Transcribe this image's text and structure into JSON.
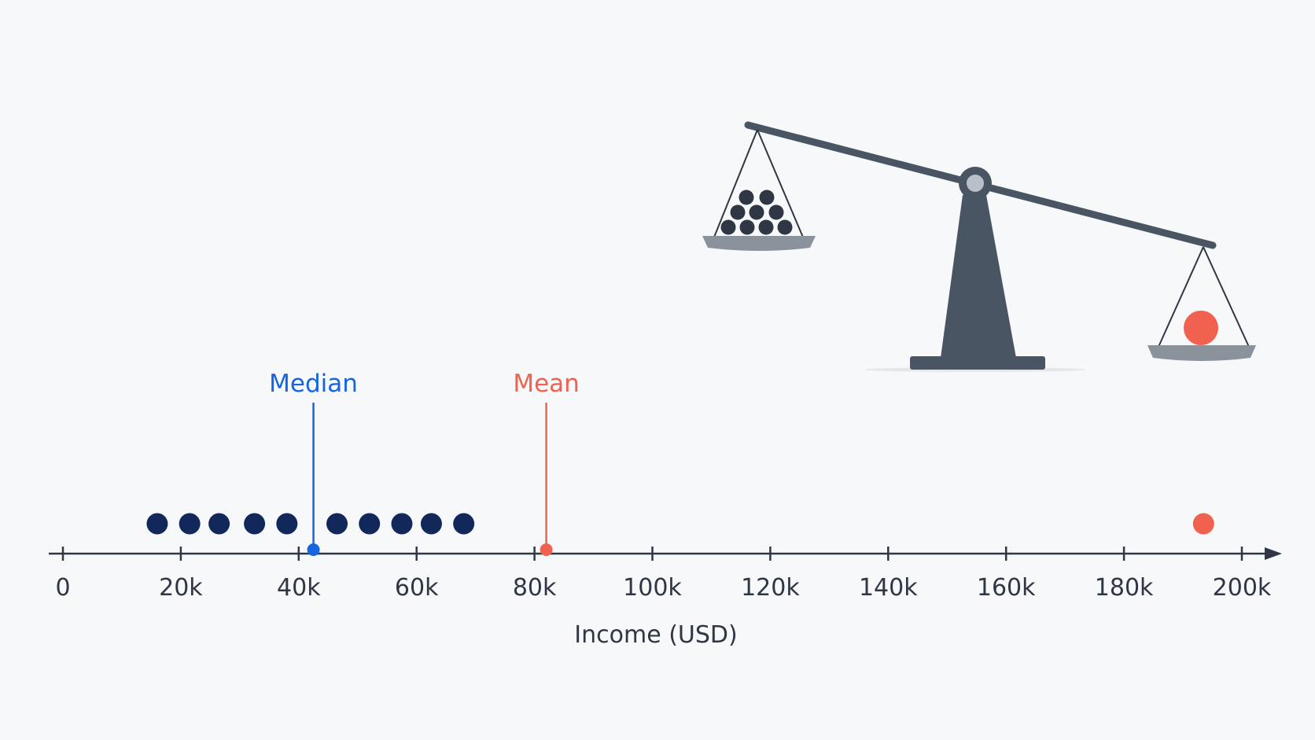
{
  "chart_data": {
    "type": "scatter",
    "xlabel": "Income (USD)",
    "xlim": [
      0,
      200000
    ],
    "x_ticks": [
      0,
      20000,
      40000,
      60000,
      80000,
      100000,
      120000,
      140000,
      160000,
      180000,
      200000
    ],
    "x_tick_labels": [
      "0",
      "20k",
      "40k",
      "60k",
      "80k",
      "100k",
      "120k",
      "140k",
      "160k",
      "180k",
      "200k"
    ],
    "series": [
      {
        "values": [
          16000,
          21500,
          26500,
          32500,
          38000,
          46500,
          52000,
          57500,
          62500,
          68000
        ],
        "color": "#13285a"
      },
      {
        "values": [
          193500
        ],
        "color": "#f0624f"
      }
    ],
    "markers": [
      {
        "label": "Median",
        "x": 42500,
        "color": "#1565e0"
      },
      {
        "label": "Mean",
        "x": 82000,
        "color": "#f0624f"
      }
    ],
    "grid": false,
    "illustration": "balance-scale-icon"
  },
  "colors": {
    "axis": "#2f3745",
    "scale": "#4a5563",
    "scale_pan": "#8a929c",
    "background": "#f7f8fa"
  }
}
